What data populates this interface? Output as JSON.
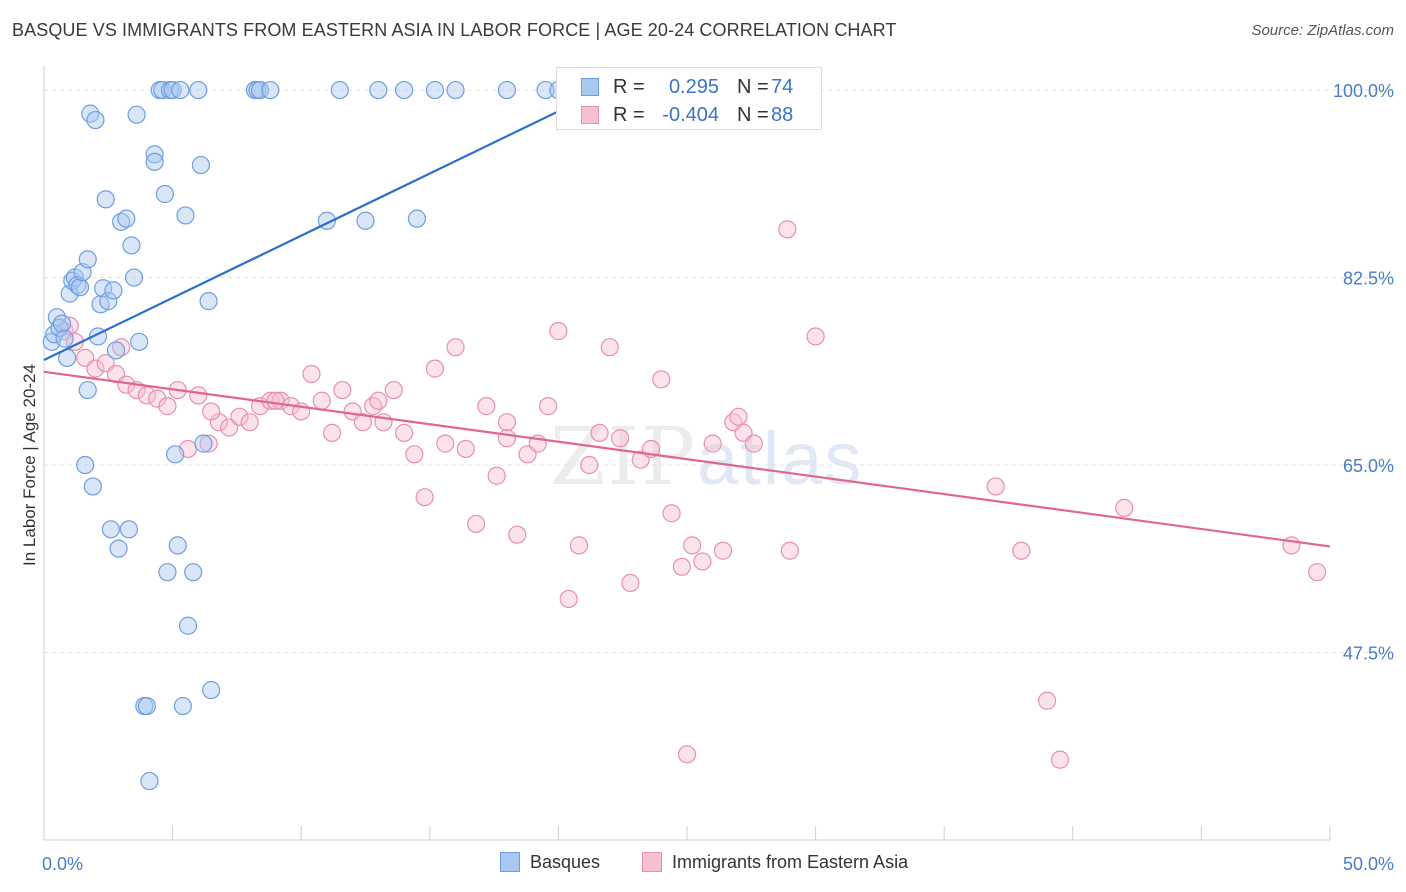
{
  "header": {
    "title": "BASQUE VS IMMIGRANTS FROM EASTERN ASIA IN LABOR FORCE | AGE 20-24 CORRELATION CHART",
    "source": "Source: ZipAtlas.com"
  },
  "watermark": {
    "zip": "ZIP",
    "atlas": "atlas"
  },
  "legend_top": {
    "rows": [
      {
        "r_label": "R =",
        "r_value": "0.295",
        "n_label": "N =",
        "n_value": "74"
      },
      {
        "r_label": "R =",
        "r_value": "-0.404",
        "n_label": "N =",
        "n_value": "88"
      }
    ]
  },
  "legend_bottom": {
    "items": [
      "Basques",
      "Immigrants from Eastern Asia"
    ]
  },
  "colors": {
    "blue_fill": "#a9c8f0",
    "blue_stroke": "#6e9ee0",
    "blue_line": "#2a6fcc",
    "pink_fill": "#f6bfd2",
    "pink_stroke": "#e98fb0",
    "pink_line": "#e0668f",
    "tick_label": "#4a7cc9",
    "grid": "#e3e3e3"
  },
  "chart_data": {
    "type": "scatter",
    "title": "BASQUE VS IMMIGRANTS FROM EASTERN ASIA IN LABOR FORCE | AGE 20-24 CORRELATION CHART",
    "xlabel": "",
    "ylabel": "In Labor Force | Age 20-24",
    "xlim": [
      0,
      50
    ],
    "ylim": [
      30,
      101.5
    ],
    "x_tick_labels": [
      "0.0%",
      "50.0%"
    ],
    "y_ticks": [
      47.5,
      65.0,
      82.5,
      100.0
    ],
    "y_tick_labels": [
      "47.5%",
      "65.0%",
      "82.5%",
      "100.0%"
    ],
    "grid": true,
    "legend_position": "bottom",
    "series": [
      {
        "name": "Basques",
        "R": 0.295,
        "N": 74,
        "trend": {
          "x": [
            0,
            23
          ],
          "y": [
            74.8,
            101.5
          ]
        },
        "points": [
          [
            0.3,
            76.5
          ],
          [
            0.4,
            77.2
          ],
          [
            0.5,
            78.8
          ],
          [
            0.6,
            77.8
          ],
          [
            0.7,
            78.2
          ],
          [
            0.8,
            76.8
          ],
          [
            0.9,
            75.0
          ],
          [
            1.0,
            81.0
          ],
          [
            1.1,
            82.2
          ],
          [
            1.2,
            82.5
          ],
          [
            1.3,
            81.8
          ],
          [
            1.4,
            81.6
          ],
          [
            1.5,
            83.0
          ],
          [
            1.6,
            65.0
          ],
          [
            1.7,
            72.0
          ],
          [
            1.7,
            84.2
          ],
          [
            1.8,
            97.8
          ],
          [
            1.9,
            63.0
          ],
          [
            2.0,
            97.2
          ],
          [
            2.1,
            77.0
          ],
          [
            2.2,
            80.0
          ],
          [
            2.3,
            81.5
          ],
          [
            2.4,
            89.8
          ],
          [
            2.5,
            80.3
          ],
          [
            2.6,
            59.0
          ],
          [
            2.7,
            81.3
          ],
          [
            2.8,
            75.7
          ],
          [
            2.9,
            57.2
          ],
          [
            3.0,
            87.7
          ],
          [
            3.2,
            88.0
          ],
          [
            3.3,
            59.0
          ],
          [
            3.4,
            85.5
          ],
          [
            3.5,
            82.5
          ],
          [
            3.6,
            97.7
          ],
          [
            3.7,
            76.5
          ],
          [
            3.9,
            42.5
          ],
          [
            4.0,
            42.5
          ],
          [
            4.1,
            35.5
          ],
          [
            4.3,
            94.0
          ],
          [
            4.3,
            93.3
          ],
          [
            4.5,
            100.0
          ],
          [
            4.6,
            100.0
          ],
          [
            4.7,
            90.3
          ],
          [
            4.8,
            55.0
          ],
          [
            4.9,
            100.0
          ],
          [
            5.0,
            100.0
          ],
          [
            5.1,
            66.0
          ],
          [
            5.2,
            57.5
          ],
          [
            5.3,
            100.0
          ],
          [
            5.4,
            42.5
          ],
          [
            5.5,
            88.3
          ],
          [
            5.6,
            50.0
          ],
          [
            5.8,
            55.0
          ],
          [
            6.0,
            100.0
          ],
          [
            6.1,
            93.0
          ],
          [
            6.2,
            67.0
          ],
          [
            6.4,
            80.3
          ],
          [
            6.5,
            44.0
          ],
          [
            8.2,
            100.0
          ],
          [
            8.3,
            100.0
          ],
          [
            8.4,
            100.0
          ],
          [
            8.8,
            100.0
          ],
          [
            11.5,
            100.0
          ],
          [
            13.0,
            100.0
          ],
          [
            14.0,
            100.0
          ],
          [
            14.5,
            88.0
          ],
          [
            15.2,
            100.0
          ],
          [
            19.5,
            100.0
          ],
          [
            20.0,
            100.0
          ],
          [
            22.8,
            100.0
          ],
          [
            11.0,
            87.8
          ],
          [
            12.5,
            87.8
          ],
          [
            16.0,
            100.0
          ],
          [
            18.0,
            100.0
          ]
        ]
      },
      {
        "name": "Immigrants from Eastern Asia",
        "R": -0.404,
        "N": 88,
        "trend": {
          "x": [
            0,
            50
          ],
          "y": [
            73.7,
            57.4
          ]
        },
        "points": [
          [
            0.8,
            77.5
          ],
          [
            1.2,
            76.5
          ],
          [
            1.6,
            75.0
          ],
          [
            2.0,
            74.0
          ],
          [
            2.4,
            74.5
          ],
          [
            2.8,
            73.5
          ],
          [
            3.2,
            72.5
          ],
          [
            3.6,
            72.0
          ],
          [
            4.0,
            71.5
          ],
          [
            4.4,
            71.2
          ],
          [
            4.8,
            70.5
          ],
          [
            5.2,
            72.0
          ],
          [
            5.6,
            66.5
          ],
          [
            6.0,
            71.5
          ],
          [
            6.4,
            67.0
          ],
          [
            6.8,
            69.0
          ],
          [
            7.2,
            68.5
          ],
          [
            7.6,
            69.5
          ],
          [
            8.0,
            69.0
          ],
          [
            8.4,
            70.5
          ],
          [
            8.8,
            71.0
          ],
          [
            9.2,
            71.0
          ],
          [
            9.6,
            70.5
          ],
          [
            10.0,
            70.0
          ],
          [
            10.4,
            73.5
          ],
          [
            10.8,
            71.0
          ],
          [
            11.2,
            68.0
          ],
          [
            11.6,
            72.0
          ],
          [
            12.0,
            70.0
          ],
          [
            12.4,
            69.0
          ],
          [
            12.8,
            70.5
          ],
          [
            13.2,
            69.0
          ],
          [
            13.6,
            72.0
          ],
          [
            14.0,
            68.0
          ],
          [
            14.4,
            66.0
          ],
          [
            14.8,
            62.0
          ],
          [
            15.2,
            74.0
          ],
          [
            15.6,
            67.0
          ],
          [
            16.0,
            76.0
          ],
          [
            16.4,
            66.5
          ],
          [
            16.8,
            59.5
          ],
          [
            17.2,
            70.5
          ],
          [
            17.6,
            64.0
          ],
          [
            18.0,
            69.0
          ],
          [
            18.4,
            58.5
          ],
          [
            18.8,
            66.0
          ],
          [
            19.2,
            67.0
          ],
          [
            19.6,
            70.5
          ],
          [
            20.0,
            77.5
          ],
          [
            20.4,
            52.5
          ],
          [
            20.8,
            57.5
          ],
          [
            21.2,
            65.0
          ],
          [
            21.6,
            68.0
          ],
          [
            22.0,
            76.0
          ],
          [
            22.4,
            67.5
          ],
          [
            22.8,
            54.0
          ],
          [
            23.2,
            65.5
          ],
          [
            23.6,
            66.5
          ],
          [
            24.0,
            73.0
          ],
          [
            24.4,
            60.5
          ],
          [
            24.8,
            55.5
          ],
          [
            25.2,
            57.5
          ],
          [
            25.6,
            56.0
          ],
          [
            26.0,
            67.0
          ],
          [
            26.4,
            57.0
          ],
          [
            26.8,
            69.0
          ],
          [
            27.2,
            68.0
          ],
          [
            27.6,
            67.0
          ],
          [
            28.0,
            100.0
          ],
          [
            28.8,
            100.0
          ],
          [
            28.9,
            87.0
          ],
          [
            29.0,
            57.0
          ],
          [
            30.0,
            77.0
          ],
          [
            37.0,
            63.0
          ],
          [
            38.0,
            57.0
          ],
          [
            39.0,
            43.0
          ],
          [
            39.5,
            37.5
          ],
          [
            42.0,
            61.0
          ],
          [
            48.5,
            57.5
          ],
          [
            49.5,
            55.0
          ],
          [
            27.0,
            69.5
          ],
          [
            18.0,
            67.5
          ],
          [
            25.0,
            38.0
          ],
          [
            13.0,
            71.0
          ],
          [
            9.0,
            71.0
          ],
          [
            6.5,
            70.0
          ],
          [
            3.0,
            76.0
          ],
          [
            1.0,
            78.0
          ]
        ]
      }
    ]
  }
}
